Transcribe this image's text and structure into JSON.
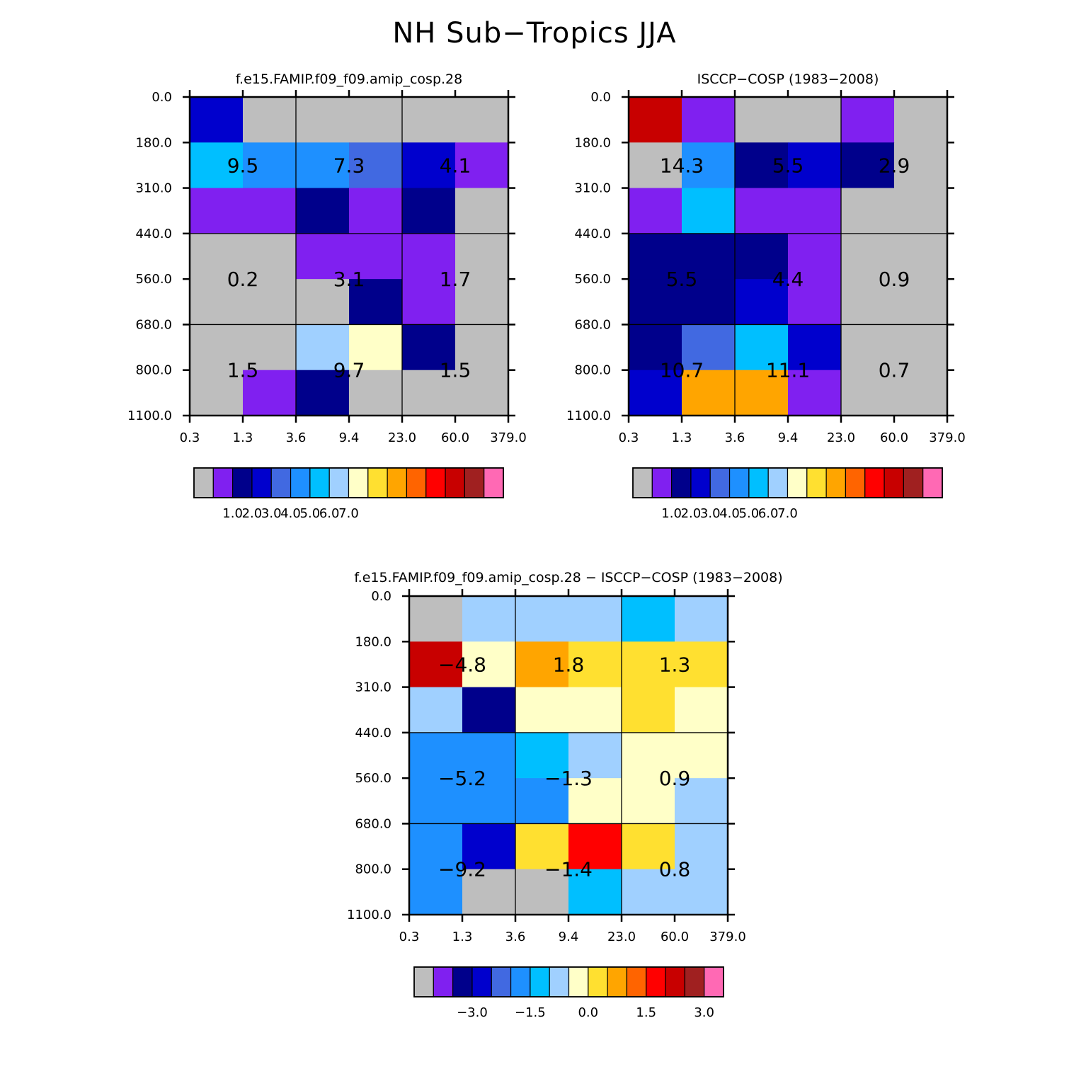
{
  "title": "NH Sub−Tropics JJA",
  "chart_data": [
    {
      "type": "heatmap",
      "id": "model",
      "title": "f.e15.FAMIP.f09_f09.amip_cosp.28",
      "x_ticks": [
        "0.3",
        "1.3",
        "3.6",
        "9.4",
        "23.0",
        "60.0",
        "379.0"
      ],
      "y_ticks": [
        "0.0",
        "180.0",
        "310.0",
        "440.0",
        "560.0",
        "680.0",
        "800.0",
        "1100.0"
      ],
      "cells": [
        [
          3,
          0,
          0,
          0,
          0,
          0
        ],
        [
          6,
          5,
          5,
          4,
          3,
          1
        ],
        [
          1,
          1,
          2,
          1,
          2,
          0
        ],
        [
          0,
          0,
          1,
          1,
          1,
          0
        ],
        [
          0,
          0,
          0,
          2,
          1,
          0
        ],
        [
          0,
          0,
          7,
          8,
          2,
          0
        ],
        [
          0,
          1,
          2,
          0,
          0,
          0
        ]
      ],
      "box_labels": [
        [
          "9.5",
          "7.3",
          "4.1"
        ],
        [
          "0.2",
          "3.1",
          "1.7"
        ],
        [
          "1.5",
          "9.7",
          "1.5"
        ]
      ],
      "colorbar_labels": [
        "1.0",
        "2.0",
        "3.0",
        "4.0",
        "5.0",
        "6.0",
        "7.0"
      ]
    },
    {
      "type": "heatmap",
      "id": "obs",
      "title": "ISCCP−COSP (1983−2008)",
      "x_ticks": [
        "0.3",
        "1.3",
        "3.6",
        "9.4",
        "23.0",
        "60.0",
        "379.0"
      ],
      "y_ticks": [
        "0.0",
        "180.0",
        "310.0",
        "440.0",
        "560.0",
        "680.0",
        "800.0",
        "1100.0"
      ],
      "cells": [
        [
          13,
          1,
          0,
          0,
          1,
          0
        ],
        [
          0,
          5,
          2,
          3,
          2,
          0
        ],
        [
          1,
          6,
          1,
          1,
          0,
          0
        ],
        [
          2,
          2,
          2,
          1,
          0,
          0
        ],
        [
          2,
          2,
          3,
          1,
          0,
          0
        ],
        [
          2,
          4,
          6,
          3,
          0,
          0
        ],
        [
          3,
          10,
          10,
          1,
          0,
          0
        ]
      ],
      "box_labels": [
        [
          "14.3",
          "5.5",
          "2.9"
        ],
        [
          "5.5",
          "4.4",
          "0.9"
        ],
        [
          "10.7",
          "11.1",
          "0.7"
        ]
      ],
      "colorbar_labels": [
        "1.0",
        "2.0",
        "3.0",
        "4.0",
        "5.0",
        "6.0",
        "7.0"
      ]
    },
    {
      "type": "heatmap",
      "id": "diff",
      "title": "f.e15.FAMIP.f09_f09.amip_cosp.28 − ISCCP−COSP (1983−2008)",
      "x_ticks": [
        "0.3",
        "1.3",
        "3.6",
        "9.4",
        "23.0",
        "60.0",
        "379.0"
      ],
      "y_ticks": [
        "0.0",
        "180.0",
        "310.0",
        "440.0",
        "560.0",
        "680.0",
        "800.0",
        "1100.0"
      ],
      "cells": [
        [
          0,
          7,
          7,
          7,
          6,
          7
        ],
        [
          13,
          8,
          10,
          9,
          9,
          9
        ],
        [
          7,
          2,
          8,
          8,
          9,
          8
        ],
        [
          5,
          5,
          6,
          7,
          8,
          8
        ],
        [
          5,
          5,
          5,
          8,
          8,
          7
        ],
        [
          5,
          3,
          9,
          12,
          9,
          7
        ],
        [
          5,
          0,
          0,
          6,
          7,
          7
        ]
      ],
      "box_labels": [
        [
          "−4.8",
          "1.8",
          "1.3"
        ],
        [
          "−5.2",
          "−1.3",
          "0.9"
        ],
        [
          "−9.2",
          "−1.4",
          "0.8"
        ]
      ],
      "colorbar_labels": [
        "−3.0",
        "−1.5",
        "0.0",
        "1.5",
        "3.0"
      ]
    }
  ],
  "palette": [
    "#bebebe",
    "#8020f0",
    "#00008b",
    "#0000cd",
    "#4169e1",
    "#1e90ff",
    "#00bfff",
    "#a0d0ff",
    "#ffffc8",
    "#ffe030",
    "#ffa500",
    "#ff6400",
    "#ff0000",
    "#c80000",
    "#a02020",
    "#ff69b4"
  ]
}
